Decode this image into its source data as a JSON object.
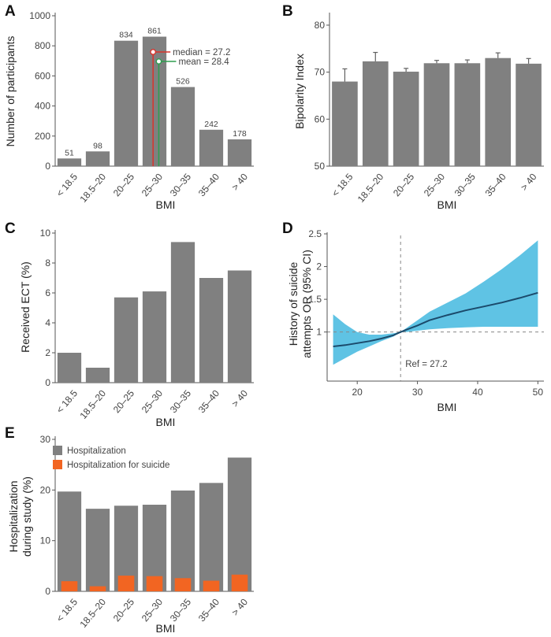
{
  "chart_data": [
    {
      "panel": "A",
      "type": "bar",
      "categories": [
        "< 18.5",
        "18.5–20",
        "20–25",
        "25–30",
        "30–35",
        "35–40",
        "> 40"
      ],
      "values": [
        51,
        98,
        834,
        861,
        526,
        242,
        178
      ],
      "data_labels": [
        "51",
        "98",
        "834",
        "861",
        "526",
        "242",
        "178"
      ],
      "ylabel": "Number of participants",
      "xlabel": "BMI",
      "ylim": [
        0,
        1000
      ],
      "yticks": [
        0,
        200,
        400,
        600,
        800,
        1000
      ],
      "annotations": [
        {
          "label": "median = 27.2",
          "value": 27.2,
          "color": "#d9322b"
        },
        {
          "label": "mean = 28.4",
          "value": 28.4,
          "color": "#2e9e4f"
        }
      ]
    },
    {
      "panel": "B",
      "type": "bar",
      "categories": [
        "< 18.5",
        "18.5–20",
        "20–25",
        "25–30",
        "30–35",
        "35–40",
        "> 40"
      ],
      "values": [
        68,
        72.3,
        70.1,
        71.9,
        71.9,
        73.0,
        71.8
      ],
      "errors": [
        2.7,
        1.9,
        0.7,
        0.6,
        0.7,
        1.1,
        1.1
      ],
      "ylabel": "Bipolarity Index",
      "xlabel": "BMI",
      "ylim": [
        50,
        82
      ],
      "yticks": [
        50,
        60,
        70,
        80
      ]
    },
    {
      "panel": "C",
      "type": "bar",
      "categories": [
        "< 18.5",
        "18.5–20",
        "20–25",
        "25–30",
        "30–35",
        "35–40",
        "> 40"
      ],
      "values": [
        2.0,
        1.0,
        5.7,
        6.1,
        9.4,
        7.0,
        7.5
      ],
      "ylabel": "Received ECT (%)",
      "xlabel": "BMI",
      "ylim": [
        0,
        10
      ],
      "yticks": [
        0,
        2,
        4,
        6,
        8,
        10
      ]
    },
    {
      "panel": "D",
      "type": "line",
      "x": [
        16,
        18,
        20,
        22,
        24,
        26,
        27.2,
        28,
        30,
        32,
        35,
        38,
        41,
        44,
        47,
        50
      ],
      "y": [
        0.78,
        0.8,
        0.83,
        0.86,
        0.9,
        0.95,
        1.0,
        1.03,
        1.1,
        1.18,
        1.26,
        1.33,
        1.39,
        1.45,
        1.52,
        1.6
      ],
      "ci_low": [
        0.5,
        0.6,
        0.7,
        0.78,
        0.86,
        0.93,
        1.0,
        1.0,
        1.02,
        1.04,
        1.06,
        1.07,
        1.08,
        1.08,
        1.08,
        1.08
      ],
      "ci_high": [
        1.27,
        1.12,
        1.0,
        0.96,
        0.96,
        0.98,
        1.0,
        1.05,
        1.18,
        1.31,
        1.45,
        1.59,
        1.77,
        1.96,
        2.17,
        2.4
      ],
      "ylabel_line1": "History of suicide",
      "ylabel_line2": "attempts OR (95% CI)",
      "xlabel": "BMI",
      "xlim": [
        15,
        51
      ],
      "ylim": [
        0.25,
        2.5
      ],
      "xticks": [
        20,
        30,
        40,
        50
      ],
      "yticks": [
        1,
        1.5,
        2,
        2.5
      ],
      "yticklabels": [
        "1",
        "1.5",
        "2",
        "2.5"
      ],
      "reference": {
        "x": 27.2,
        "y": 1,
        "label": "Ref = 27.2"
      },
      "colors": {
        "band": "#5fc3e4",
        "line": "#1b4a6b",
        "ref": "#888888"
      }
    },
    {
      "panel": "E",
      "type": "bar",
      "categories": [
        "< 18.5",
        "18.5–20",
        "20–25",
        "25–30",
        "30–35",
        "35–40",
        "> 40"
      ],
      "series": [
        {
          "name": "Hospitalization",
          "values": [
            19.7,
            16.3,
            16.9,
            17.1,
            19.9,
            21.4,
            26.4
          ],
          "color": "#808080"
        },
        {
          "name": "Hospitalization for suicide",
          "values": [
            2.0,
            1.0,
            3.1,
            3.0,
            2.6,
            2.1,
            3.3
          ],
          "color": "#f26522"
        }
      ],
      "ylabel_line1": "Hospitalization",
      "ylabel_line2": "during study (%)",
      "xlabel": "BMI",
      "ylim": [
        0,
        30
      ],
      "yticks": [
        0,
        10,
        20,
        30
      ],
      "legend": "top-left"
    }
  ],
  "panel_labels": [
    "A",
    "B",
    "C",
    "D",
    "E"
  ],
  "colors": {
    "bar": "#808080",
    "axis": "#555555",
    "text": "#333333"
  }
}
